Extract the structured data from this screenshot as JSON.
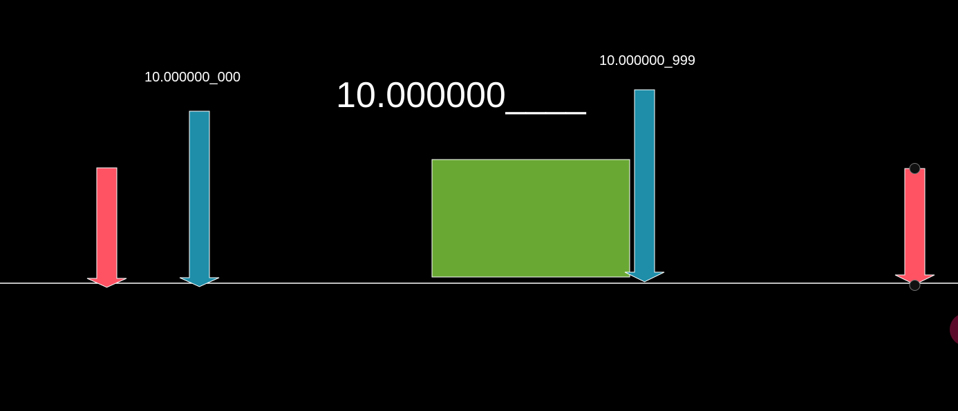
{
  "labels": {
    "left_arrow": "10.000000_000",
    "right_arrow": "10.000000_999",
    "center": "10.000000____"
  },
  "colors": {
    "background": "#000000",
    "baseline": "#ffffff",
    "red_arrow": "#ff5263",
    "blue_arrow": "#1e8ea9",
    "green_block": "#6aa834",
    "handle": "#111111"
  }
}
